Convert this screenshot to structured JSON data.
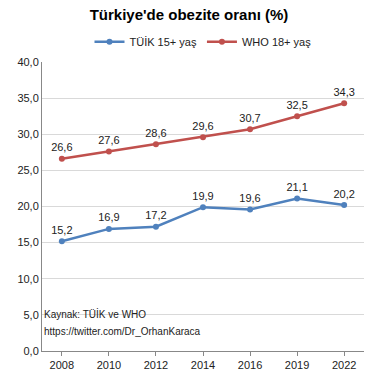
{
  "chart_data": {
    "type": "line",
    "title": "Türkiye'de obezite oranı (%)",
    "categories": [
      "2008",
      "2010",
      "2012",
      "2014",
      "2016",
      "2019",
      "2022"
    ],
    "series": [
      {
        "name": "TÜİK 15+ yaş",
        "color": "#4f81bd",
        "marker": "circle",
        "values": [
          15.2,
          16.9,
          17.2,
          19.9,
          19.6,
          21.1,
          20.2
        ],
        "value_labels": [
          "15,2",
          "16,9",
          "17,2",
          "19,9",
          "19,6",
          "21,1",
          "20,2"
        ]
      },
      {
        "name": "WHO 18+ yaş",
        "color": "#c0504d",
        "marker": "circle",
        "values": [
          26.6,
          27.6,
          28.6,
          29.6,
          30.7,
          32.5,
          34.3
        ],
        "value_labels": [
          "26,6",
          "27,6",
          "28,6",
          "29,6",
          "30,7",
          "32,5",
          "34,3"
        ]
      }
    ],
    "ylim": [
      0,
      40
    ],
    "yticks": [
      {
        "value": 0,
        "label": "0,0"
      },
      {
        "value": 5,
        "label": "5,0"
      },
      {
        "value": 10,
        "label": "10,0"
      },
      {
        "value": 15,
        "label": "15,0"
      },
      {
        "value": 20,
        "label": "20,0"
      },
      {
        "value": 25,
        "label": "25,0"
      },
      {
        "value": 30,
        "label": "30,0"
      },
      {
        "value": 35,
        "label": "35,0"
      },
      {
        "value": 40,
        "label": "40,0"
      }
    ],
    "grid": true,
    "legend": "top",
    "data_labels": true,
    "annotations": [
      "Kaynak: TÜİK ve WHO",
      "https://twitter.com/Dr_OrhanKaraca"
    ]
  }
}
